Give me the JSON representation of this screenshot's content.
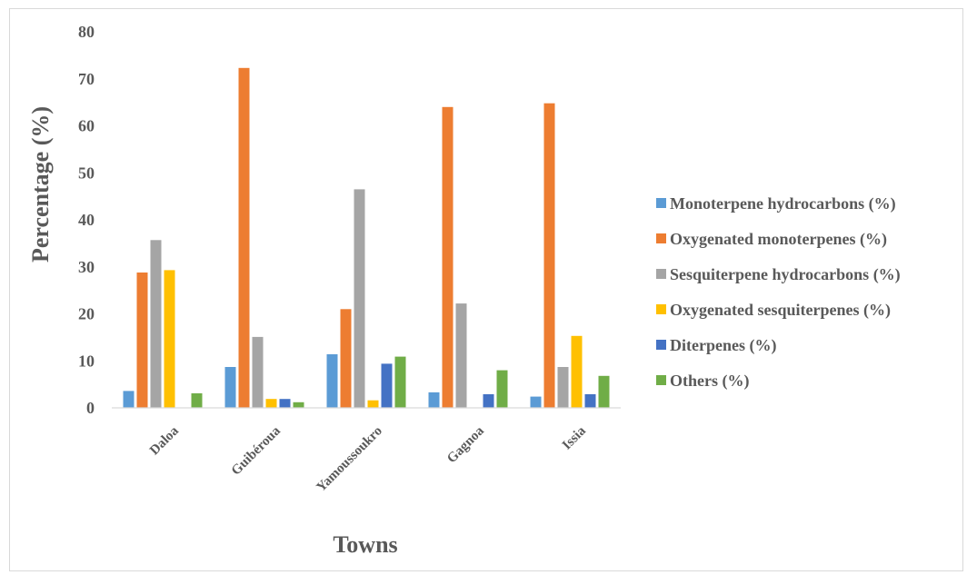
{
  "chart_data": {
    "type": "bar",
    "title": "",
    "xlabel": "Towns",
    "ylabel": "Percentage (%)",
    "ylim": [
      0,
      80
    ],
    "yticks": [
      0,
      10,
      20,
      30,
      40,
      50,
      60,
      70,
      80
    ],
    "grid": false,
    "legend_position": "right",
    "categories": [
      "Daloa",
      "Guibéroua",
      "Yamoussoukro",
      "Gagnoa",
      "Issia"
    ],
    "series": [
      {
        "name": "Monoterpene hydrocarbons (%)",
        "color": "#5b9bd5",
        "values": [
          3.6,
          8.7,
          11.4,
          3.3,
          2.4
        ]
      },
      {
        "name": "Oxygenated monoterpenes (%)",
        "color": "#ed7d31",
        "values": [
          28.8,
          72.3,
          21.0,
          64.0,
          64.8
        ]
      },
      {
        "name": "Sesquiterpene hydrocarbons (%)",
        "color": "#a5a5a5",
        "values": [
          35.7,
          15.1,
          46.5,
          22.2,
          8.7
        ]
      },
      {
        "name": "Oxygenated sesquiterpenes (%)",
        "color": "#ffc000",
        "values": [
          29.3,
          1.9,
          1.6,
          0,
          15.3
        ]
      },
      {
        "name": "Diterpenes (%)",
        "color": "#4472c4",
        "values": [
          0,
          1.9,
          9.4,
          2.9,
          2.9
        ]
      },
      {
        "name": "Others (%)",
        "color": "#70ad47",
        "values": [
          3.1,
          1.2,
          10.9,
          8.0,
          6.8
        ]
      }
    ]
  }
}
